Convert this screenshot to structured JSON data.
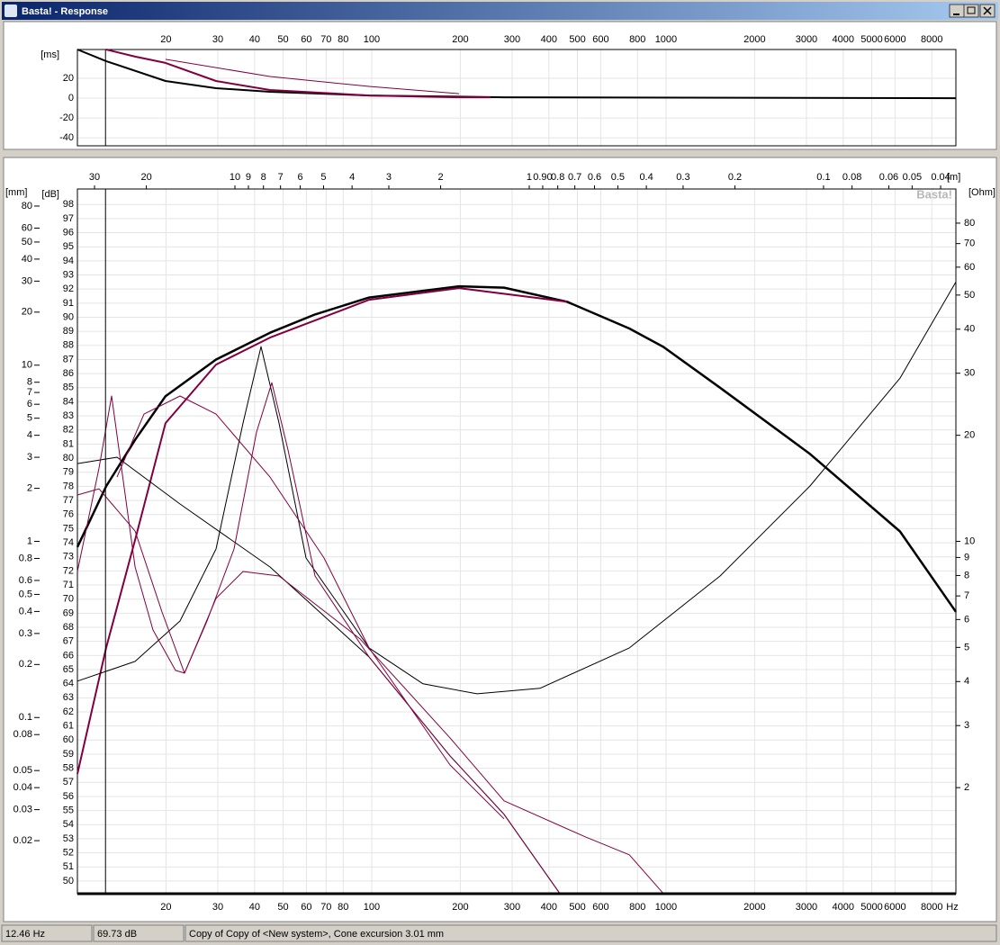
{
  "window": {
    "title": "Basta! - Response"
  },
  "delay_chart": {
    "type": "line",
    "y_label": "[ms]",
    "xlim": [
      10,
      9660
    ],
    "ylim": [
      -48,
      49
    ],
    "yticks": [
      20,
      0,
      -20,
      -40
    ],
    "xticks": [
      20,
      30,
      40,
      50,
      60,
      70,
      80,
      100,
      200,
      300,
      400,
      500,
      600,
      800,
      1000,
      2000,
      3000,
      4000,
      5000,
      6000,
      8000
    ],
    "series": [
      {
        "color": "#000000",
        "width": 2,
        "x": [
          10,
          12.52,
          19.93,
          29.58,
          45.12,
          97.9,
          281.6,
          9660
        ],
        "values": [
          49,
          37.3,
          17.3,
          10,
          6.4,
          2.7,
          0.9,
          0
        ]
      },
      {
        "color": "#800040",
        "width": 2,
        "x": [
          12.52,
          15.7,
          19.93,
          29.58,
          45.12,
          97.9,
          198,
          253
        ],
        "values": [
          49,
          41.8,
          35.5,
          17.3,
          8.2,
          2.7,
          0.9,
          0.9
        ]
      },
      {
        "color": "#800040",
        "width": 1,
        "x": [
          19.93,
          45.12,
          97.9,
          198
        ],
        "values": [
          39.1,
          21.8,
          11.8,
          4.5
        ]
      }
    ]
  },
  "response_chart": {
    "type": "line",
    "y_label": "[dB]",
    "mm_label": "[mm]",
    "ohm_label": "[Ohm]",
    "x_unit": "Hz",
    "distance_unit": "[m]",
    "watermark": "Basta!",
    "xlim": [
      10,
      9660
    ],
    "ylim": [
      49.1,
      99.1
    ],
    "xticks": [
      20,
      30,
      40,
      50,
      60,
      70,
      80,
      100,
      200,
      300,
      400,
      500,
      600,
      800,
      1000,
      2000,
      3000,
      4000,
      5000,
      6000,
      8000
    ],
    "yticks": [
      50,
      51,
      52,
      53,
      54,
      55,
      56,
      57,
      58,
      59,
      60,
      61,
      62,
      63,
      64,
      65,
      66,
      67,
      68,
      69,
      70,
      71,
      72,
      73,
      74,
      75,
      76,
      77,
      78,
      79,
      80,
      81,
      82,
      83,
      84,
      85,
      86,
      87,
      88,
      89,
      90,
      91,
      92,
      93,
      94,
      95,
      96,
      97,
      98
    ],
    "mm_lim": [
      0.01,
      100
    ],
    "mm_ticks": [
      80,
      60,
      50,
      40,
      30,
      20,
      10,
      8,
      7,
      6,
      5,
      4,
      3,
      2,
      1,
      0.8,
      0.6,
      0.5,
      0.4,
      0.3,
      0.2,
      0.1,
      0.08,
      0.05,
      0.04,
      0.03,
      0.02
    ],
    "ohm_lim": [
      1,
      100
    ],
    "ohm_ticks": [
      80,
      70,
      60,
      50,
      40,
      30,
      20,
      10,
      9,
      8,
      7,
      6,
      5,
      4,
      3,
      2
    ],
    "distance_lim": [
      34.3,
      0.0355
    ],
    "distance_ticks": [
      30,
      20,
      10,
      9,
      8,
      7,
      6,
      5,
      4,
      3,
      2,
      1,
      {
        "value": 0.9,
        "label": "0.90"
      },
      0.8,
      0.7,
      0.6,
      0.5,
      0.4,
      0.3,
      0.2,
      0.1,
      0.08,
      0.06,
      0.05,
      0.04
    ],
    "cursor_x": 12.46,
    "series": [
      {
        "color": "#000000",
        "width": 2.5,
        "x": [
          10,
          12.52,
          15.7,
          19.93,
          29.58,
          45.12,
          64.18,
          97.9,
          198,
          281.6,
          461,
          750.5,
          979,
          1526,
          3085,
          6240,
          9660
        ],
        "values": [
          73.7,
          78,
          81.3,
          84.4,
          87,
          88.9,
          90.2,
          91.4,
          92.2,
          92.1,
          91.1,
          89.2,
          87.9,
          85,
          80.3,
          74.8,
          69.1
        ]
      },
      {
        "color": "#800040",
        "width": 2,
        "x": [
          10,
          12.52,
          15.7,
          19.93,
          29.58,
          45.12,
          97.9,
          198,
          461
        ],
        "values": [
          57.6,
          66.54,
          74.2,
          82.49,
          86.64,
          88.56,
          91.24,
          92.07,
          91.1
        ]
      },
      {
        "color": "#000000",
        "width": 1,
        "x": [
          10,
          15.7,
          22.32,
          29.58,
          36.53,
          42.06,
          48.42,
          59.82,
          97.9,
          149.4,
          228,
          373,
          750.5,
          1526,
          3085,
          6240,
          9660
        ],
        "values": [
          64.18,
          65.58,
          68.45,
          73.56,
          82.49,
          87.92,
          82.49,
          72.92,
          66.54,
          63.99,
          63.28,
          63.67,
          66.54,
          71.64,
          78.03,
          85.68,
          92.51
        ]
      },
      {
        "color": "#000000",
        "width": 1,
        "x": [
          10,
          13.63,
          22.32,
          45.12,
          97.9,
          184.5,
          281.6,
          435.6
        ],
        "values": [
          79.62,
          80.07,
          76.75,
          72.28,
          65.9,
          58.88,
          54.73,
          49.12
        ]
      },
      {
        "color": "#800040",
        "width": 1,
        "x": [
          10,
          11.84,
          15.7,
          19.39,
          23.11,
          29.58,
          36.53,
          48.42,
          91.26,
          184.5,
          281.6,
          530.6,
          750.5,
          979
        ],
        "values": [
          77.39,
          77.83,
          74.83,
          69.09,
          64.75,
          70.05,
          71.96,
          71.64,
          67.18,
          60.16,
          55.69,
          53.14,
          51.86,
          49.12
        ]
      },
      {
        "color": "#800040",
        "width": 1,
        "x": [
          13.63,
          16.84,
          22.32,
          29.58,
          45.12,
          68.85,
          97.9,
          184.5,
          281.6
        ],
        "values": [
          78.66,
          83.13,
          84.41,
          83.13,
          78.66,
          72.92,
          66.54,
          58.24,
          54.41
        ]
      },
      {
        "color": "#800040",
        "width": 1,
        "x": [
          10,
          11.84,
          13.07,
          14.12,
          15.7,
          18.07,
          21.54,
          23.11,
          27.57,
          34.05,
          40.61,
          45.77,
          51.95,
          64.18,
          97.9,
          184.5,
          281.6,
          435.6
        ],
        "values": [
          71.96,
          79.3,
          84.41,
          79.3,
          72.28,
          67.81,
          64.94,
          64.75,
          68.45,
          73.56,
          81.85,
          85.36,
          80.58,
          71.64,
          65.9,
          58.88,
          54.73,
          49.12
        ]
      }
    ]
  },
  "status_bar": {
    "frequency": "12.46 Hz",
    "level": "69.73 dB",
    "description": "Copy of Copy of <New system>, Cone excursion 3.01 mm"
  }
}
